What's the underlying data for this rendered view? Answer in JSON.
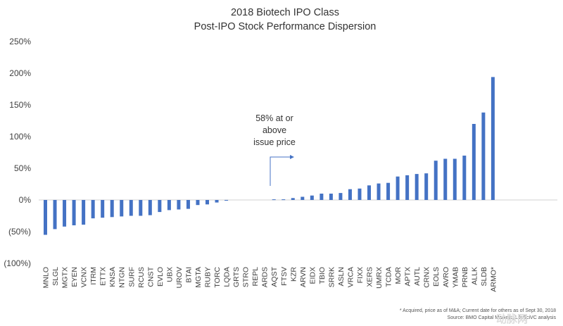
{
  "chart_data": {
    "type": "bar",
    "title": "2018 Biotech IPO Class",
    "subtitle": "Post-IPO Stock Performance Dispersion",
    "ylim": [
      -100,
      250
    ],
    "yticks": [
      -100,
      -50,
      0,
      50,
      100,
      150,
      200,
      250
    ],
    "ytick_labels": [
      "(100%)",
      "(50%)",
      "0%",
      "50%",
      "100%",
      "150%",
      "200%",
      "250%"
    ],
    "color": "#4472C4",
    "grid": false,
    "categories": [
      "MNLO",
      "SLGL",
      "MGTX",
      "EYEN",
      "VCNX",
      "ITRM",
      "ETTX",
      "KNSA",
      "NTGN",
      "SURF",
      "RCUS",
      "CNST",
      "EVLO",
      "UBX",
      "UROV",
      "BTAI",
      "MGTA",
      "RUBY",
      "TORC",
      "LQDA",
      "GRTS",
      "STRO",
      "REPL",
      "ARDS",
      "AQST",
      "FTSV",
      "KZR",
      "ARVN",
      "EIDX",
      "TBIO",
      "SRRK",
      "ASLN",
      "VRCA",
      "FIXX",
      "XERS",
      "UMRX",
      "TCDA",
      "MOR",
      "APTX",
      "AUTL",
      "CRNX",
      "EOLS",
      "AVRO",
      "YMAB",
      "PRNB",
      "ALLK",
      "SLDB",
      "ARMO*"
    ],
    "values": [
      -55,
      -46,
      -42,
      -40,
      -39,
      -29,
      -28,
      -27,
      -26,
      -25,
      -25,
      -24,
      -19,
      -16,
      -15,
      -14,
      -8,
      -7,
      -4,
      -1,
      0,
      0,
      0,
      0,
      1,
      1,
      3,
      5,
      7,
      10,
      10,
      11,
      17,
      18,
      23,
      26,
      27,
      37,
      39,
      41,
      42,
      62,
      65,
      65,
      70,
      120,
      138,
      194
    ],
    "annotation": [
      "58% at or",
      "above",
      "issue price"
    ],
    "footnotes": [
      "* Acquired, price as of M&A; Current date for others as of Sept 30, 2018",
      "Source: BMO Capital Markets, LifeSciVC analysis"
    ]
  },
  "watermark": "动脉网"
}
